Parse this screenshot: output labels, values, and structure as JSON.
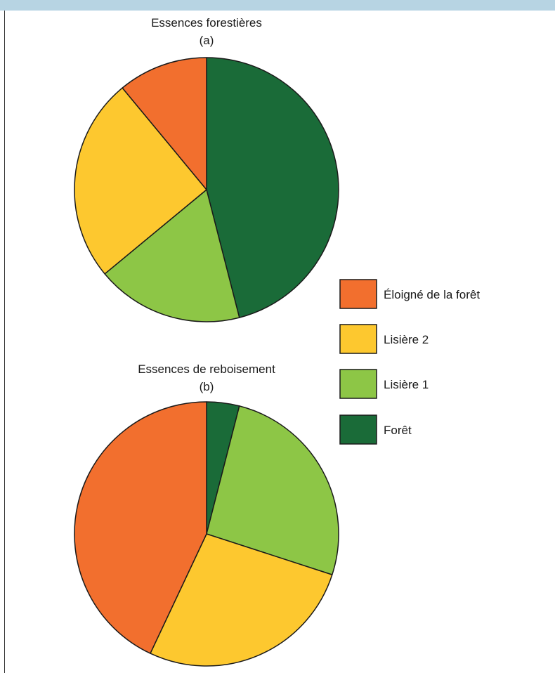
{
  "colors": {
    "top_band": "#b7d4e3"
  },
  "chart_data": [
    {
      "type": "pie",
      "title": "Essences forestières",
      "subtitle": "(a)",
      "slices": [
        {
          "label": "Forêt",
          "value": 46,
          "color": "#1a6b38"
        },
        {
          "label": "Lisière 1",
          "value": 18,
          "color": "#8dc646"
        },
        {
          "label": "Lisière 2",
          "value": 25,
          "color": "#fdc82f"
        },
        {
          "label": "Éloigné de la forêt",
          "value": 11,
          "color": "#f26f2e"
        }
      ],
      "start_angle_deg": 0,
      "direction": "clockwise"
    },
    {
      "type": "pie",
      "title": "Essences de reboisement",
      "subtitle": "(b)",
      "slices": [
        {
          "label": "Forêt",
          "value": 4,
          "color": "#1a6b38"
        },
        {
          "label": "Lisière 1",
          "value": 26,
          "color": "#8dc646"
        },
        {
          "label": "Lisière 2",
          "value": 27,
          "color": "#fdc82f"
        },
        {
          "label": "Éloigné de la forêt",
          "value": 43,
          "color": "#f26f2e"
        }
      ],
      "start_angle_deg": 0,
      "direction": "clockwise"
    }
  ],
  "legend": {
    "placement": "right",
    "items": [
      {
        "label": "Éloigné de la forêt",
        "color": "#f26f2e"
      },
      {
        "label": "Lisière 2",
        "color": "#fdc82f"
      },
      {
        "label": "Lisière 1",
        "color": "#8dc646"
      },
      {
        "label": "Forêt",
        "color": "#1a6b38"
      }
    ]
  }
}
